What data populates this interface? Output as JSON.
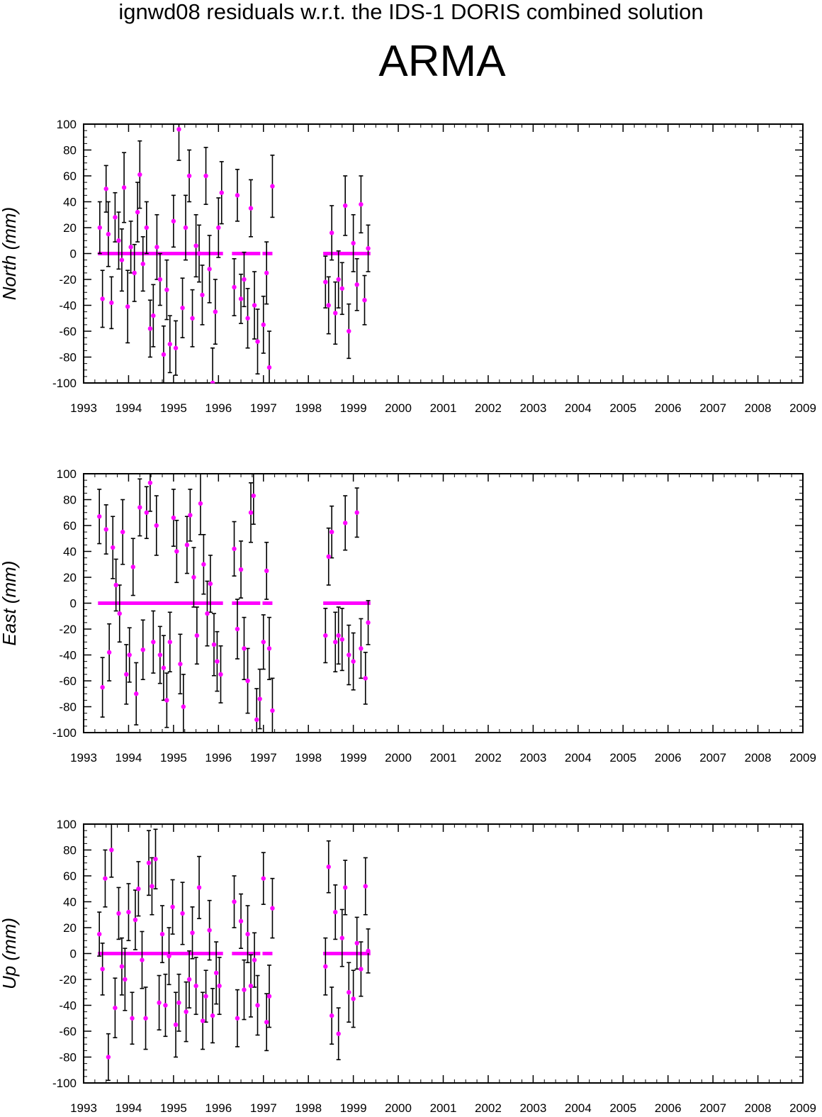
{
  "header": {
    "title": "ignwd08 residuals w.r.t. the IDS-1 DORIS combined solution",
    "station": "ARMA"
  },
  "style": {
    "point_color": "#ff00ff",
    "errorbar_color": "#000000",
    "frame_color": "#000000"
  },
  "chart_data": [
    {
      "type": "scatter",
      "ylabel": "North (mm)",
      "xlim": [
        1993,
        2009
      ],
      "ylim": [
        -100,
        100
      ],
      "xticks": [
        "1993",
        "1994",
        "1995",
        "1996",
        "1997",
        "1998",
        "1999",
        "2000",
        "2001",
        "2002",
        "2003",
        "2004",
        "2005",
        "2006",
        "2007",
        "2008",
        "2009"
      ],
      "yticks": [
        "100",
        "80",
        "60",
        "40",
        "20",
        "0",
        "-20",
        "-40",
        "-60",
        "-80",
        "-100"
      ],
      "error_bars": true,
      "series": [
        {
          "x": [
            1993.36,
            1993.42,
            1993.5,
            1993.55,
            1993.62,
            1993.7,
            1993.78,
            1993.85,
            1993.9,
            1993.98,
            1994.05,
            1994.13,
            1994.2,
            1994.25,
            1994.32,
            1994.4,
            1994.48,
            1994.55,
            1994.63,
            1994.7,
            1994.78,
            1994.85,
            1994.92,
            1995.0,
            1995.05,
            1995.12,
            1995.2,
            1995.27,
            1995.35,
            1995.42,
            1995.5,
            1995.57,
            1995.64,
            1995.72,
            1995.8,
            1995.87,
            1995.93,
            1996.0,
            1996.07,
            1996.35,
            1996.42,
            1996.5,
            1996.57,
            1996.65,
            1996.72,
            1996.8,
            1996.87,
            1997.0,
            1997.07,
            1997.13,
            1997.2,
            1998.38,
            1998.45,
            1998.52,
            1998.6,
            1998.67,
            1998.75,
            1998.82,
            1998.9,
            1999.0,
            1999.08,
            1999.17,
            1999.25,
            1999.33
          ],
          "y": [
            20,
            -35,
            50,
            15,
            -38,
            28,
            10,
            -5,
            51,
            -41,
            5,
            -15,
            32,
            61,
            -8,
            20,
            -58,
            -48,
            5,
            -20,
            -78,
            -28,
            -70,
            25,
            -73,
            96,
            -42,
            20,
            60,
            -50,
            6,
            0,
            -32,
            60,
            -12,
            -100,
            -45,
            20,
            47,
            -26,
            45,
            -35,
            -20,
            -50,
            35,
            -40,
            -68,
            -55,
            -15,
            -88,
            52,
            -22,
            -40,
            16,
            -46,
            -20,
            -27,
            37,
            -60,
            8,
            -24,
            38,
            -36,
            4
          ],
          "err": [
            20,
            22,
            18,
            25,
            20,
            19,
            22,
            24,
            27,
            28,
            20,
            22,
            23,
            26,
            21,
            20,
            22,
            24,
            25,
            20,
            22,
            23,
            22,
            20,
            21,
            24,
            23,
            25,
            20,
            22,
            24,
            22,
            23,
            22,
            26,
            27,
            25,
            23,
            24,
            22,
            20,
            19,
            21,
            23,
            22,
            26,
            25,
            22,
            24,
            28,
            24,
            20,
            22,
            21,
            24,
            22,
            20,
            23,
            21,
            22,
            20,
            22,
            19,
            18
          ],
          "zeros_x": [
            [
              1993.32,
              1996.1
            ],
            [
              1996.3,
              1996.93
            ],
            [
              1996.98,
              1997.2
            ],
            [
              1998.33,
              1999.38
            ]
          ]
        }
      ]
    },
    {
      "type": "scatter",
      "ylabel": "East (mm)",
      "xlim": [
        1993,
        2009
      ],
      "ylim": [
        -100,
        100
      ],
      "xticks": [
        "1993",
        "1994",
        "1995",
        "1996",
        "1997",
        "1998",
        "1999",
        "2000",
        "2001",
        "2002",
        "2003",
        "2004",
        "2005",
        "2006",
        "2007",
        "2008",
        "2009"
      ],
      "yticks": [
        "100",
        "80",
        "60",
        "40",
        "20",
        "0",
        "-20",
        "-40",
        "-60",
        "-80",
        "-100"
      ],
      "error_bars": true,
      "series": [
        {
          "x": [
            1993.35,
            1993.42,
            1993.5,
            1993.57,
            1993.65,
            1993.72,
            1993.8,
            1993.87,
            1993.95,
            1994.02,
            1994.1,
            1994.17,
            1994.25,
            1994.32,
            1994.4,
            1994.48,
            1994.55,
            1994.62,
            1994.7,
            1994.78,
            1994.85,
            1994.92,
            1995.0,
            1995.07,
            1995.15,
            1995.22,
            1995.3,
            1995.37,
            1995.45,
            1995.52,
            1995.6,
            1995.67,
            1995.75,
            1995.82,
            1995.9,
            1995.97,
            1996.05,
            1996.35,
            1996.42,
            1996.5,
            1996.57,
            1996.65,
            1996.72,
            1996.78,
            1996.85,
            1996.92,
            1997.0,
            1997.07,
            1997.13,
            1997.2,
            1998.38,
            1998.45,
            1998.52,
            1998.6,
            1998.67,
            1998.75,
            1998.82,
            1998.9,
            1999.0,
            1999.08,
            1999.17,
            1999.27,
            1999.33
          ],
          "y": [
            67,
            -65,
            57,
            -38,
            43,
            14,
            -8,
            55,
            -55,
            -40,
            28,
            -70,
            74,
            -36,
            70,
            93,
            -30,
            60,
            -40,
            -50,
            -75,
            -30,
            66,
            40,
            -47,
            -80,
            45,
            68,
            20,
            -25,
            77,
            30,
            -8,
            15,
            -32,
            -45,
            -55,
            42,
            -20,
            26,
            -35,
            -60,
            70,
            83,
            -90,
            -74,
            -30,
            25,
            -35,
            -83,
            -25,
            36,
            55,
            -30,
            -25,
            -28,
            62,
            -40,
            -45,
            70,
            -35,
            -58,
            -15
          ],
          "err": [
            21,
            23,
            19,
            22,
            24,
            20,
            22,
            25,
            23,
            21,
            22,
            24,
            22,
            23,
            20,
            22,
            24,
            23,
            22,
            25,
            21,
            23,
            22,
            24,
            23,
            25,
            22,
            20,
            23,
            22,
            24,
            23,
            25,
            22,
            24,
            23,
            22,
            21,
            23,
            22,
            24,
            25,
            23,
            22,
            24,
            23,
            21,
            22,
            24,
            25,
            21,
            22,
            20,
            23,
            22,
            24,
            21,
            23,
            22,
            19,
            23,
            20,
            17
          ],
          "zeros_x": [
            [
              1993.32,
              1996.1
            ],
            [
              1996.3,
              1996.93
            ],
            [
              1996.98,
              1997.2
            ],
            [
              1998.33,
              1999.38
            ]
          ]
        }
      ]
    },
    {
      "type": "scatter",
      "ylabel": "Up (mm)",
      "xlim": [
        1993,
        2009
      ],
      "ylim": [
        -100,
        100
      ],
      "xticks": [
        "1993",
        "1994",
        "1995",
        "1996",
        "1997",
        "1998",
        "1999",
        "2000",
        "2001",
        "2002",
        "2003",
        "2004",
        "2005",
        "2006",
        "2007",
        "2008",
        "2009"
      ],
      "yticks": [
        "100",
        "80",
        "60",
        "40",
        "20",
        "0",
        "-20",
        "-40",
        "-60",
        "-80",
        "-100"
      ],
      "error_bars": true,
      "series": [
        {
          "x": [
            1993.35,
            1993.42,
            1993.48,
            1993.55,
            1993.62,
            1993.7,
            1993.78,
            1993.85,
            1993.92,
            1994.0,
            1994.08,
            1994.15,
            1994.22,
            1994.3,
            1994.38,
            1994.45,
            1994.52,
            1994.6,
            1994.68,
            1994.75,
            1994.82,
            1994.9,
            1994.98,
            1995.05,
            1995.12,
            1995.2,
            1995.28,
            1995.35,
            1995.42,
            1995.5,
            1995.57,
            1995.65,
            1995.72,
            1995.8,
            1995.87,
            1995.95,
            1996.02,
            1996.35,
            1996.42,
            1996.5,
            1996.57,
            1996.65,
            1996.72,
            1996.8,
            1996.87,
            1997.0,
            1997.07,
            1997.13,
            1997.2,
            1998.38,
            1998.45,
            1998.52,
            1998.6,
            1998.67,
            1998.75,
            1998.82,
            1998.9,
            1999.0,
            1999.08,
            1999.17,
            1999.27,
            1999.33
          ],
          "y": [
            15,
            -12,
            58,
            -80,
            80,
            -42,
            31,
            -10,
            -20,
            32,
            -50,
            26,
            50,
            -5,
            -50,
            70,
            52,
            73,
            -38,
            15,
            -40,
            -2,
            36,
            -55,
            -38,
            31,
            -45,
            -20,
            16,
            -25,
            51,
            -52,
            -33,
            18,
            -48,
            -15,
            -25,
            40,
            -50,
            25,
            -28,
            15,
            -25,
            -5,
            -40,
            58,
            -53,
            -33,
            35,
            -10,
            67,
            -48,
            32,
            -62,
            12,
            51,
            -30,
            -35,
            8,
            -12,
            52,
            2
          ],
          "err": [
            17,
            20,
            22,
            18,
            21,
            23,
            20,
            22,
            24,
            22,
            20,
            23,
            21,
            22,
            24,
            25,
            22,
            23,
            21,
            22,
            24,
            22,
            21,
            25,
            22,
            24,
            23,
            22,
            20,
            22,
            24,
            22,
            20,
            23,
            21,
            24,
            22,
            20,
            22,
            21,
            23,
            22,
            24,
            21,
            23,
            20,
            22,
            24,
            23,
            22,
            20,
            22,
            21,
            20,
            22,
            21,
            23,
            22,
            20,
            21,
            22,
            17
          ],
          "zeros_x": [
            [
              1993.32,
              1996.1
            ],
            [
              1996.3,
              1996.93
            ],
            [
              1996.98,
              1997.2
            ],
            [
              1998.33,
              1999.38
            ]
          ]
        }
      ]
    }
  ]
}
